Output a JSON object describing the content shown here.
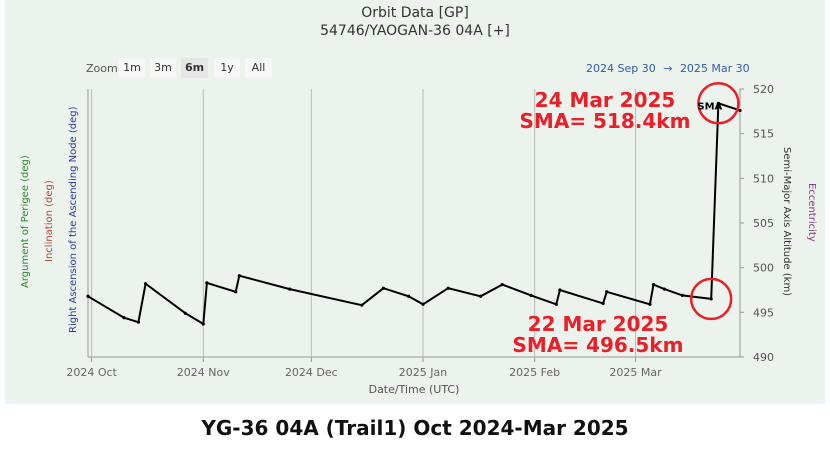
{
  "header": {
    "title": "Orbit Data [GP]",
    "subtitle": "54746/YAOGAN-36 04A [+]"
  },
  "zoom": {
    "label": "Zoom",
    "buttons": [
      "1m",
      "3m",
      "6m",
      "1y",
      "All"
    ],
    "active": "6m"
  },
  "date_range": {
    "start": "2024 Sep 30",
    "arrow": "→",
    "end": "2025 Mar 30"
  },
  "axes_labels": {
    "argument_of_perigee": "Argument of Perigee (deg)",
    "inclination": "Inclination (deg)",
    "raan": "Right Ascension of the Ascending Node (deg)",
    "sma_altitude": "Semi-Major Axis Altitude (km)",
    "eccentricity": "Eccentricity",
    "x_axis": "Date/Time (UTC)"
  },
  "colors": {
    "argument_of_perigee": "#2e8b2e",
    "inclination": "#b5493a",
    "raan": "#2b3aa8",
    "eccentricity": "#8b3a8b",
    "annotation": "#e8202a"
  },
  "annotations": {
    "top_date": "24 Mar 2025",
    "top_value": "SMA= 518.4km",
    "bottom_date": "22 Mar 2025",
    "bottom_value": "SMA= 496.5km",
    "series_tag": "SMA"
  },
  "caption": "YG-36 04A (Trail1) Oct 2024-Mar 2025",
  "chart_data": {
    "type": "line",
    "title": "Orbit Data [GP]",
    "subtitle": "54746/YAOGAN-36 04A [+]",
    "xlabel": "Date/Time (UTC)",
    "ylabel": "Semi-Major Axis Altitude (km)",
    "x_range": [
      "2024-09-30",
      "2025-03-30"
    ],
    "ylim": [
      490,
      520
    ],
    "y_ticks": [
      490,
      495,
      500,
      505,
      510,
      515,
      520
    ],
    "x_ticks": [
      {
        "date": "2024-10-01",
        "label": "2024 Oct"
      },
      {
        "date": "2024-11-01",
        "label": "2024 Nov"
      },
      {
        "date": "2024-12-01",
        "label": "2024 Dec"
      },
      {
        "date": "2025-01-01",
        "label": "2025 Jan"
      },
      {
        "date": "2025-02-01",
        "label": "2025 Feb"
      },
      {
        "date": "2025-03-01",
        "label": "2025 Mar"
      }
    ],
    "grid": true,
    "series": [
      {
        "name": "SMA",
        "points": [
          [
            "2024-09-30",
            496.8
          ],
          [
            "2024-10-10",
            494.4
          ],
          [
            "2024-10-14",
            493.9
          ],
          [
            "2024-10-16",
            498.2
          ],
          [
            "2024-10-27",
            494.9
          ],
          [
            "2024-11-01",
            493.7
          ],
          [
            "2024-11-02",
            498.3
          ],
          [
            "2024-11-10",
            497.3
          ],
          [
            "2024-11-11",
            499.1
          ],
          [
            "2024-11-25",
            497.6
          ],
          [
            "2024-12-15",
            495.8
          ],
          [
            "2024-12-21",
            497.7
          ],
          [
            "2024-12-28",
            496.8
          ],
          [
            "2025-01-01",
            495.9
          ],
          [
            "2025-01-08",
            497.7
          ],
          [
            "2025-01-17",
            496.8
          ],
          [
            "2025-01-23",
            498.1
          ],
          [
            "2025-01-31",
            496.9
          ],
          [
            "2025-02-07",
            495.9
          ],
          [
            "2025-02-08",
            497.5
          ],
          [
            "2025-02-20",
            496.0
          ],
          [
            "2025-02-21",
            497.3
          ],
          [
            "2025-03-05",
            495.9
          ],
          [
            "2025-03-06",
            498.1
          ],
          [
            "2025-03-09",
            497.6
          ],
          [
            "2025-03-14",
            496.9
          ],
          [
            "2025-03-22",
            496.5
          ],
          [
            "2025-03-24",
            518.4
          ],
          [
            "2025-03-30",
            517.6
          ]
        ]
      }
    ],
    "highlights": [
      {
        "date": "2025-03-22",
        "value": 496.5,
        "label": "22 Mar 2025"
      },
      {
        "date": "2025-03-24",
        "value": 518.4,
        "label": "24 Mar 2025"
      }
    ]
  }
}
